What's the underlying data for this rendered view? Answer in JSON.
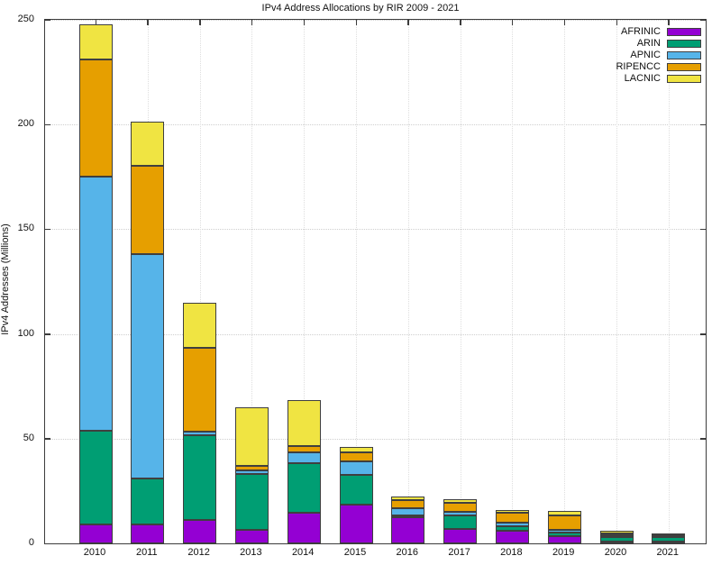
{
  "chart_data": {
    "type": "bar",
    "stacked": true,
    "title": "IPv4 Address Allocations by RIR 2009 - 2021",
    "xlabel": "",
    "ylabel": "IPv4 Addresses (Millions)",
    "ylim": [
      0,
      250
    ],
    "ytick_step": 50,
    "ytick_labels": [
      "0",
      "50",
      "100",
      "150",
      "200",
      "250"
    ],
    "grid": true,
    "legend_position": "top-right",
    "categories": [
      "2010",
      "2011",
      "2012",
      "2013",
      "2014",
      "2015",
      "2016",
      "2017",
      "2018",
      "2019",
      "2020",
      "2021"
    ],
    "series": [
      {
        "name": "AFRINIC",
        "color": "#9400d3",
        "values": [
          9,
          9,
          11,
          6.5,
          14.5,
          18.5,
          12.5,
          7,
          6,
          3.5,
          1,
          0.5
        ]
      },
      {
        "name": "ARIN",
        "color": "#009e73",
        "values": [
          45,
          22,
          40.5,
          26.5,
          24,
          14,
          1,
          6.5,
          2,
          1.5,
          2.2,
          2
        ]
      },
      {
        "name": "APNIC",
        "color": "#56b4e9",
        "values": [
          121,
          107,
          2,
          2,
          5,
          6.5,
          3.5,
          1.5,
          2,
          1.5,
          0.9,
          0.8
        ]
      },
      {
        "name": "RIPENCC",
        "color": "#e69f00",
        "values": [
          56,
          42.5,
          40,
          2,
          3,
          4.5,
          3.5,
          4.5,
          4.5,
          7,
          0.2,
          1.2
        ]
      },
      {
        "name": "LACNIC",
        "color": "#f0e442",
        "values": [
          17,
          21,
          21.5,
          28,
          22,
          2.5,
          2,
          1.5,
          1.5,
          2,
          1.2,
          0
        ]
      }
    ],
    "totals": [
      248,
      201.5,
      115,
      65,
      68.5,
      46,
      22.5,
      21,
      16,
      15.5,
      5.5,
      4.5
    ]
  }
}
